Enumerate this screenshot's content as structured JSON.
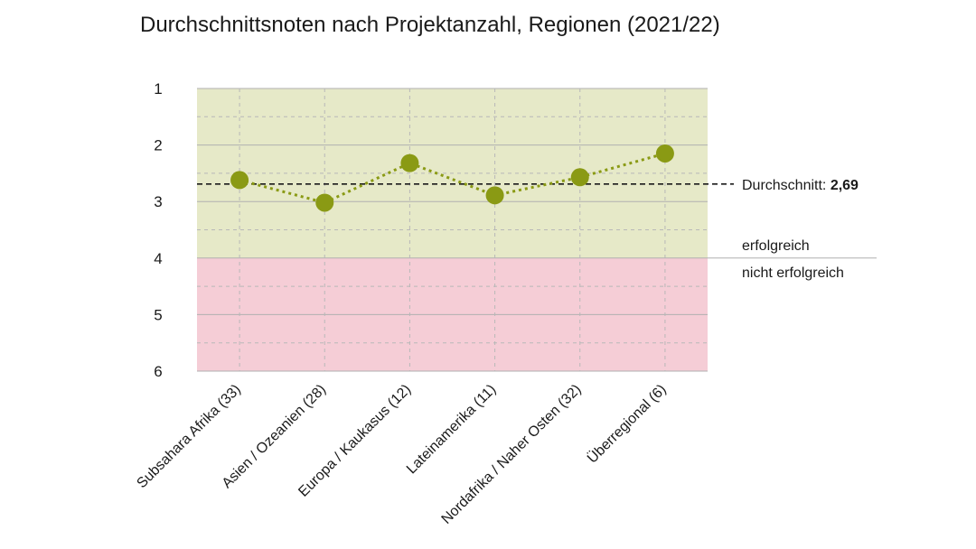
{
  "chart_data": {
    "type": "line",
    "title": "Durchschnittsnoten nach Projektanzahl, Regionen (2021/22)",
    "categories": [
      "Subsahara Afrika (33)",
      "Asien / Ozeanien (28)",
      "Europa / Kaukasus (12)",
      "Lateinamerika (11)",
      "Nordafrika / Naher Osten (32)",
      "Überregional (6)"
    ],
    "series": [
      {
        "values": [
          2.62,
          3.02,
          2.32,
          2.89,
          2.57,
          2.15
        ]
      }
    ],
    "y_ticks": [
      "1",
      "2",
      "3",
      "4",
      "5",
      "6"
    ],
    "ylim": [
      1,
      6
    ],
    "y_inverted": true,
    "average": {
      "label": "Durchschnitt: ",
      "value_label": "2,69",
      "value": 2.69
    },
    "threshold": {
      "value": 4,
      "above_label": "erfolgreich",
      "below_label": "nicht erfolgreich"
    },
    "colors": {
      "success_zone": "#e6e9c8",
      "fail_zone": "#f5cdd6",
      "series": "#8a9a14",
      "average_line": "#1a1a1a"
    },
    "grid": true
  }
}
